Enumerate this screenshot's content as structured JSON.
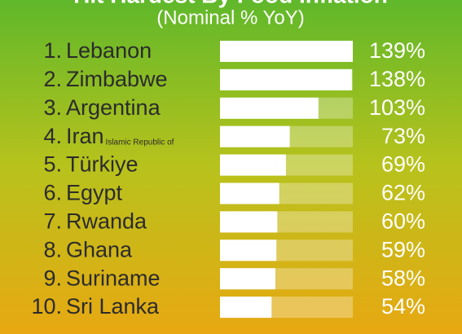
{
  "chart_data": {
    "type": "bar",
    "orientation": "horizontal",
    "title": "Hit Hardest By Food Inflation",
    "subtitle": "(Nominal % YoY)",
    "ranks": [
      "1.",
      "2.",
      "3.",
      "4.",
      "5.",
      "6.",
      "7.",
      "8.",
      "9.",
      "10."
    ],
    "categories": [
      "Lebanon",
      "Zimbabwe",
      "Argentina",
      "Iran",
      "Türkiye",
      "Egypt",
      "Rwanda",
      "Ghana",
      "Suriname",
      "Sri Lanka"
    ],
    "category_suffixes": [
      null,
      null,
      null,
      "Islamic Republic of",
      null,
      null,
      null,
      null,
      null,
      null
    ],
    "values": [
      139,
      138,
      103,
      73,
      69,
      62,
      60,
      59,
      58,
      54
    ],
    "value_labels": [
      "139%",
      "138%",
      "103%",
      "73%",
      "69%",
      "62%",
      "60%",
      "59%",
      "58%",
      "54%"
    ],
    "color": "#ffffff"
  }
}
